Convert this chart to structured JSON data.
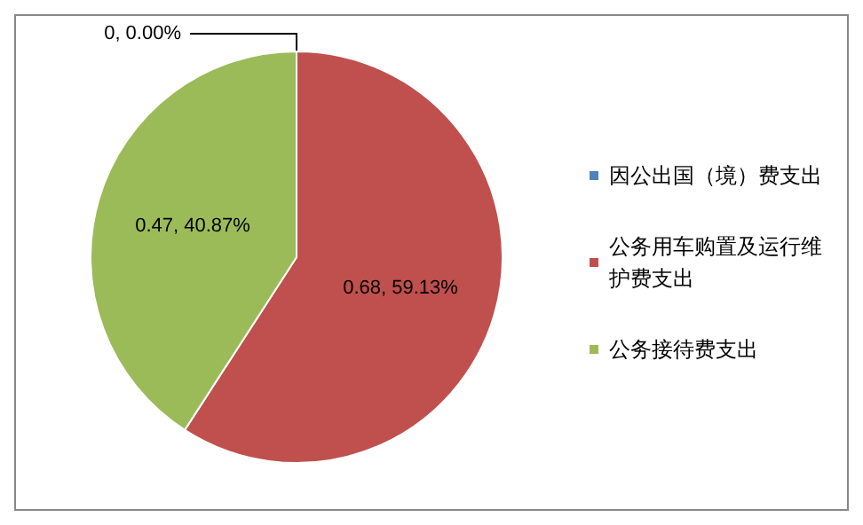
{
  "chart_data": {
    "type": "pie",
    "categories": [
      "因公出国（境）费支出",
      "公务用车购置及运行维护费支出",
      "公务接待费支出"
    ],
    "values": [
      0,
      0.68,
      0.47
    ],
    "colors": [
      "#4f81bd",
      "#c0504d",
      "#9bbb59"
    ],
    "value_labels": [
      "0, 0.00%",
      "0.68, 59.13%",
      "0.47, 40.87%"
    ],
    "legend": "right"
  }
}
